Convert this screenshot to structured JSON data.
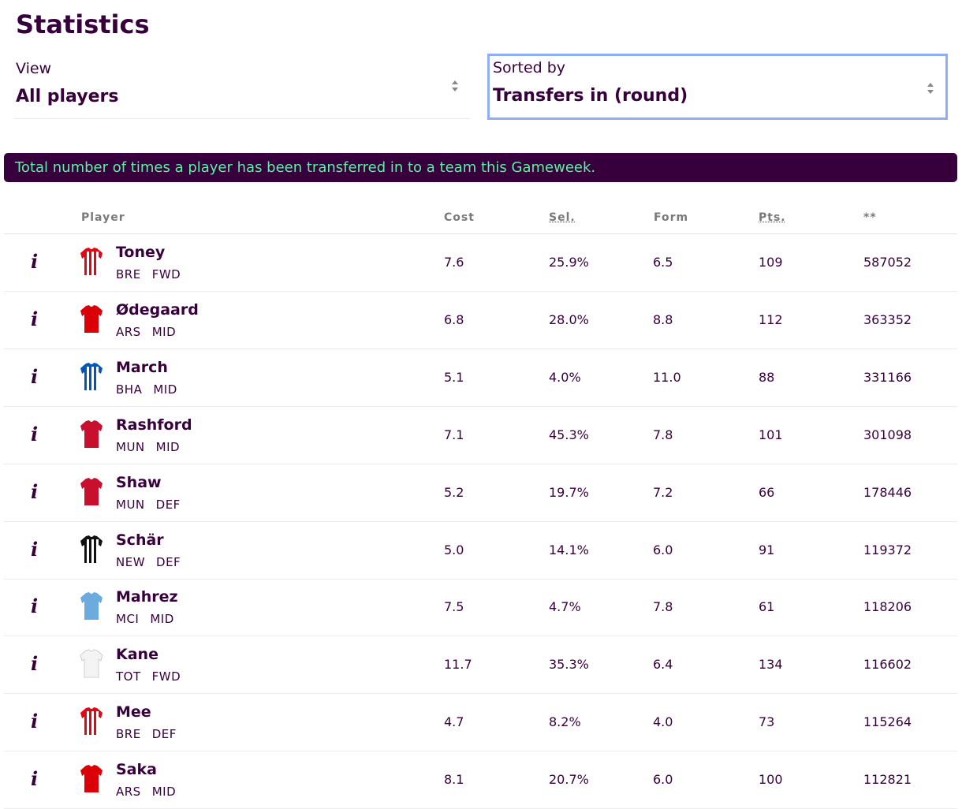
{
  "page_title": "Statistics",
  "view_select": {
    "label": "View",
    "value": "All players"
  },
  "sort_select": {
    "label": "Sorted by",
    "value": "Transfers in (round)"
  },
  "banner_text": "Total number of times a player has been transferred in to a team this Gameweek.",
  "table": {
    "headers": {
      "player": "Player",
      "cost": "Cost",
      "sel": "Sel.",
      "form": "Form",
      "pts": "Pts.",
      "stat": "**"
    },
    "rows": [
      {
        "name": "Toney",
        "team": "BRE",
        "pos": "FWD",
        "cost": "7.6",
        "sel": "25.9%",
        "form": "6.5",
        "pts": "109",
        "stat": "587052",
        "shirt_icon": "brentford-shirt-icon",
        "shirt_colors": [
          "#e30613",
          "#ffffff"
        ],
        "shirt_style": "stripes"
      },
      {
        "name": "Ødegaard",
        "team": "ARS",
        "pos": "MID",
        "cost": "6.8",
        "sel": "28.0%",
        "form": "8.8",
        "pts": "112",
        "stat": "363352",
        "shirt_icon": "arsenal-shirt-icon",
        "shirt_colors": [
          "#db0007",
          "#ffffff"
        ],
        "shirt_style": "solid"
      },
      {
        "name": "March",
        "team": "BHA",
        "pos": "MID",
        "cost": "5.1",
        "sel": "4.0%",
        "form": "11.0",
        "pts": "88",
        "stat": "331166",
        "shirt_icon": "brighton-shirt-icon",
        "shirt_colors": [
          "#0057b8",
          "#ffffff"
        ],
        "shirt_style": "stripes"
      },
      {
        "name": "Rashford",
        "team": "MUN",
        "pos": "MID",
        "cost": "7.1",
        "sel": "45.3%",
        "form": "7.8",
        "pts": "101",
        "stat": "301098",
        "shirt_icon": "man-utd-shirt-icon",
        "shirt_colors": [
          "#c8102e",
          "#c8102e"
        ],
        "shirt_style": "solid"
      },
      {
        "name": "Shaw",
        "team": "MUN",
        "pos": "DEF",
        "cost": "5.2",
        "sel": "19.7%",
        "form": "7.2",
        "pts": "66",
        "stat": "178446",
        "shirt_icon": "man-utd-shirt-icon",
        "shirt_colors": [
          "#c8102e",
          "#c8102e"
        ],
        "shirt_style": "solid"
      },
      {
        "name": "Schär",
        "team": "NEW",
        "pos": "DEF",
        "cost": "5.0",
        "sel": "14.1%",
        "form": "6.0",
        "pts": "91",
        "stat": "119372",
        "shirt_icon": "newcastle-shirt-icon",
        "shirt_colors": [
          "#111111",
          "#ffffff"
        ],
        "shirt_style": "stripes"
      },
      {
        "name": "Mahrez",
        "team": "MCI",
        "pos": "MID",
        "cost": "7.5",
        "sel": "4.7%",
        "form": "7.8",
        "pts": "61",
        "stat": "118206",
        "shirt_icon": "man-city-shirt-icon",
        "shirt_colors": [
          "#6cabdd",
          "#6cabdd"
        ],
        "shirt_style": "solid"
      },
      {
        "name": "Kane",
        "team": "TOT",
        "pos": "FWD",
        "cost": "11.7",
        "sel": "35.3%",
        "form": "6.4",
        "pts": "134",
        "stat": "116602",
        "shirt_icon": "tottenham-shirt-icon",
        "shirt_colors": [
          "#f4f4f4",
          "#f4f4f4"
        ],
        "shirt_style": "solid"
      },
      {
        "name": "Mee",
        "team": "BRE",
        "pos": "DEF",
        "cost": "4.7",
        "sel": "8.2%",
        "form": "4.0",
        "pts": "73",
        "stat": "115264",
        "shirt_icon": "brentford-shirt-icon",
        "shirt_colors": [
          "#e30613",
          "#ffffff"
        ],
        "shirt_style": "stripes"
      },
      {
        "name": "Saka",
        "team": "ARS",
        "pos": "MID",
        "cost": "8.1",
        "sel": "20.7%",
        "form": "6.0",
        "pts": "100",
        "stat": "112821",
        "shirt_icon": "arsenal-shirt-icon",
        "shirt_colors": [
          "#db0007",
          "#ffffff"
        ],
        "shirt_style": "solid"
      }
    ]
  },
  "colors": {
    "brand": "#37003c",
    "banner_text": "#5df0a2",
    "focus_ring": "#8fb0f0"
  }
}
